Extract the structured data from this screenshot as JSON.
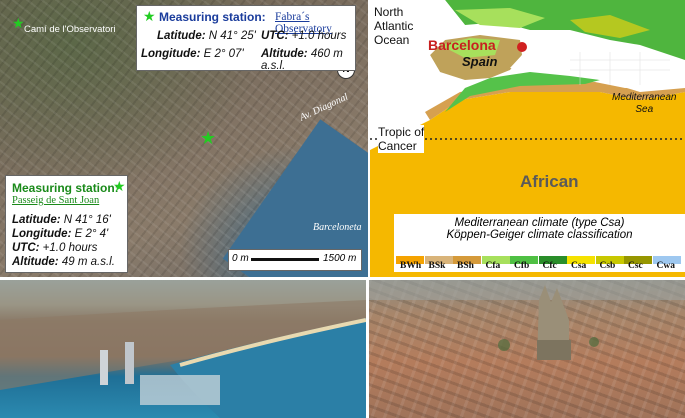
{
  "city_map": {
    "top_label": "Camí de l'Observatori",
    "street_label": "Av. Diagonal",
    "port_label": "Barceloneta",
    "compass": "N",
    "scale": {
      "start": "0 m",
      "end": "1500 m"
    },
    "obs_station": {
      "title": "Measuring station:",
      "name": "Fabra´s Observatory",
      "lat_key": "Latitude:",
      "lat_val": "N 41° 25'",
      "utc_key": "UTC:",
      "utc_val": "+1.0 hours",
      "lon_key": "Longitude:",
      "lon_val": "E 2° 07'",
      "alt_key": "Altitude:",
      "alt_val": "460 m a.s.l."
    },
    "psj_station": {
      "title": "Measuring station:",
      "name": "Passeig de Sant Joan",
      "lat_key": "Latitude:",
      "lat_val": "N 41° 16'",
      "lon_key": "Longitude:",
      "lon_val": "E 2° 4'",
      "utc_key": "UTC:",
      "utc_val": "+1.0 hours",
      "alt_key": "Altitude:",
      "alt_val": "49 m a.s.l."
    }
  },
  "climate_map": {
    "ocean_label": "North Atlantic Ocean",
    "ocean_line1": "North",
    "ocean_line2": "Atlantic",
    "ocean_line3": "Ocean",
    "city_label": "Barcelona",
    "country_label": "Spain",
    "sea_line1": "Mediterranean",
    "sea_line2": "Sea",
    "tropic_line1": "Tropic of",
    "tropic_line2": "Cancer",
    "continent_label": "African",
    "caption_line1": "Mediterranean climate (type Csa)",
    "caption_line2": "Köppen-Geiger climate classification",
    "legend": [
      {
        "code": "BWh",
        "color": "#f5a300"
      },
      {
        "code": "BSk",
        "color": "#d9b47a"
      },
      {
        "code": "BSh",
        "color": "#d59a3a"
      },
      {
        "code": "Cfa",
        "color": "#a7e05c"
      },
      {
        "code": "Cfb",
        "color": "#4fc043"
      },
      {
        "code": "Cfc",
        "color": "#2a8e2a"
      },
      {
        "code": "Csa",
        "color": "#f5e200"
      },
      {
        "code": "Csb",
        "color": "#c8c800"
      },
      {
        "code": "Csc",
        "color": "#969600"
      },
      {
        "code": "Cwa",
        "color": "#9ec8f0"
      }
    ]
  }
}
